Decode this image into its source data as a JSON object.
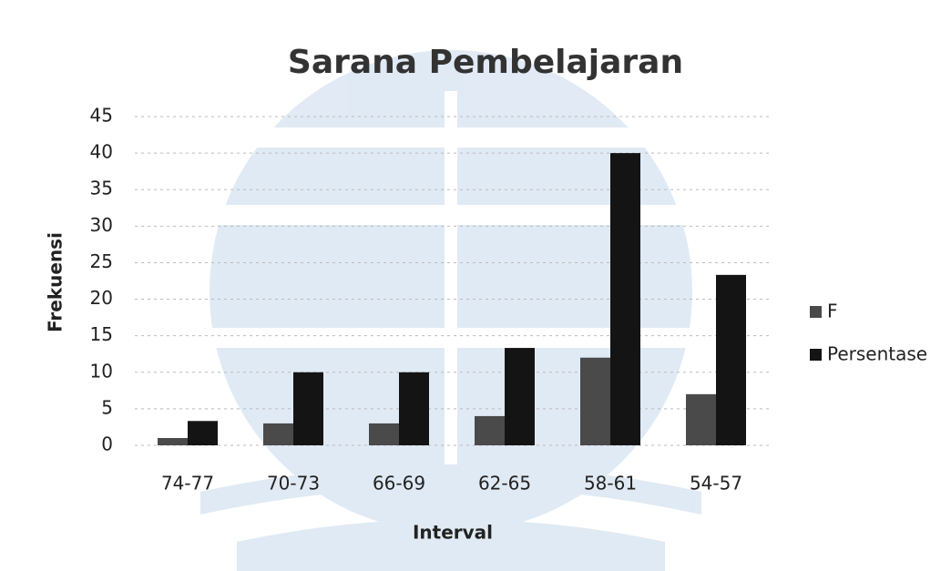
{
  "chart_data": {
    "type": "bar",
    "title": "Sarana Pembelajaran",
    "x_label": "Interval",
    "y_label": "Frekuensi",
    "categories": [
      "74-77",
      "70-73",
      "66-69",
      "62-65",
      "58-61",
      "54-57"
    ],
    "series": [
      {
        "name": "F",
        "color": "#4a4a4a",
        "values": [
          1,
          3,
          3,
          4,
          12,
          7
        ]
      },
      {
        "name": "Persentase",
        "color": "#141414",
        "values": [
          3.33,
          10,
          10,
          13.33,
          40,
          23.33
        ]
      }
    ],
    "ylim": [
      0,
      45
    ],
    "yticks": [
      0,
      5,
      10,
      15,
      20,
      25,
      30,
      35,
      40,
      45
    ],
    "grid": true,
    "legend": "right"
  }
}
